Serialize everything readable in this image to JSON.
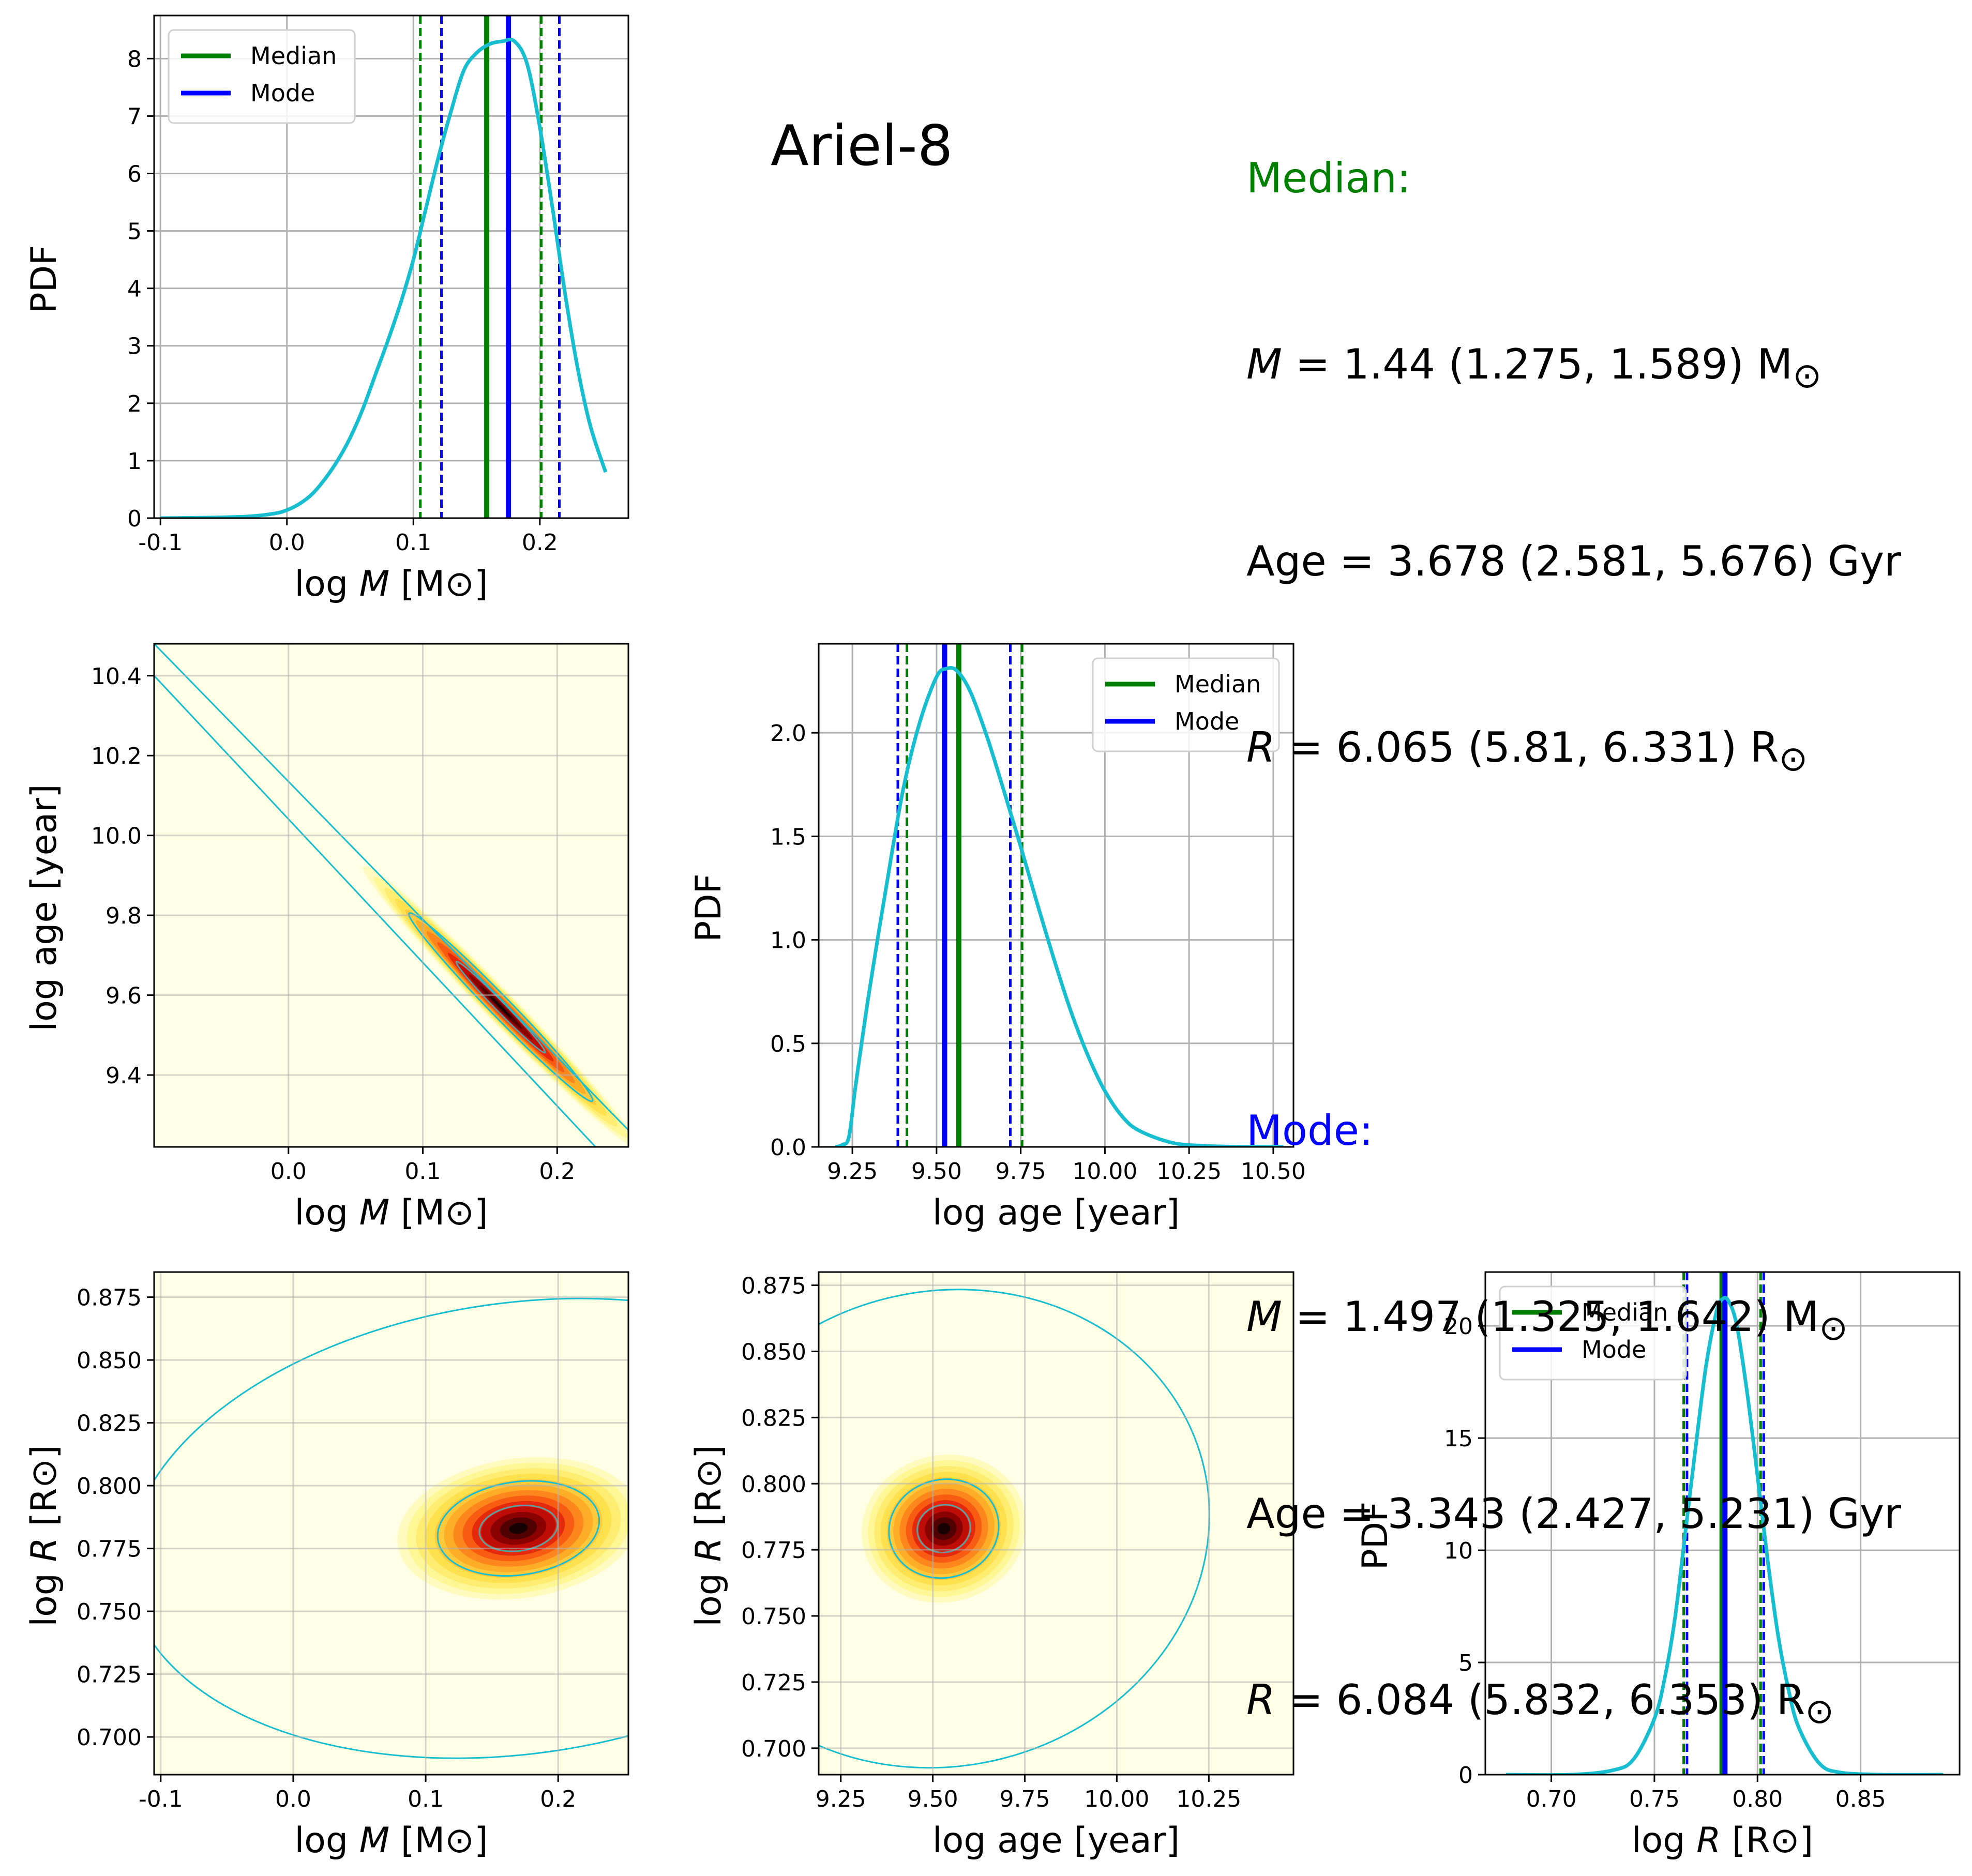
{
  "figure": {
    "title": "Ariel-8",
    "summary": {
      "median": {
        "heading": "Median:",
        "color": "#008000",
        "mass_value": "= 1.44 (1.275, 1.589) M",
        "age_line": "Age = 3.678 (2.581, 5.676) Gyr",
        "radius_value": "= 6.065 (5.81, 6.331) R"
      },
      "mode": {
        "heading": "Mode:",
        "color": "#0000ff",
        "mass_value": "= 1.497 (1.325, 1.642) M",
        "age_line": "Age = 3.343 (2.427, 5.231) Gyr",
        "radius_value": "= 6.084 (5.832, 6.353) R"
      },
      "mass_symbol": "M",
      "radius_symbol": "R",
      "sun_symbol": "⊙"
    },
    "colors": {
      "pdf_curve": "#17becf",
      "median": "#008000",
      "mode": "#0000ff",
      "grid": "#b0b0b0",
      "density_low": "#ffffe5",
      "density_high": "#000000"
    },
    "legend": [
      "Median",
      "Mode"
    ]
  },
  "chart_data": [
    {
      "id": "pdf-logM",
      "type": "line",
      "xlabel": "log M [M⊙]",
      "ylabel": "PDF",
      "xlim": [
        -0.105,
        0.27
      ],
      "ylim": [
        0,
        8.75
      ],
      "xticks": [
        "-0.1",
        "0.0",
        "0.1",
        "0.2"
      ],
      "xtick_values": [
        -0.1,
        0.0,
        0.1,
        0.2
      ],
      "yticks": [
        "0",
        "1",
        "2",
        "3",
        "4",
        "5",
        "6",
        "7",
        "8"
      ],
      "ytick_values": [
        0,
        1,
        2,
        3,
        4,
        5,
        6,
        7,
        8
      ],
      "legend_position": "upper-left",
      "series": [
        {
          "name": "PDF",
          "x": [
            -0.1,
            -0.06,
            -0.03,
            -0.01,
            0.0,
            0.01,
            0.02,
            0.03,
            0.04,
            0.05,
            0.06,
            0.07,
            0.08,
            0.09,
            0.1,
            0.11,
            0.12,
            0.13,
            0.14,
            0.15,
            0.16,
            0.17,
            0.18,
            0.19,
            0.2,
            0.21,
            0.22,
            0.23,
            0.24,
            0.252
          ],
          "y": [
            0.0,
            0.01,
            0.03,
            0.08,
            0.14,
            0.25,
            0.42,
            0.68,
            1.0,
            1.4,
            1.9,
            2.5,
            3.1,
            3.75,
            4.5,
            5.4,
            6.3,
            7.1,
            7.8,
            8.1,
            8.25,
            8.3,
            8.3,
            7.9,
            6.8,
            5.4,
            3.9,
            2.6,
            1.6,
            0.8
          ]
        }
      ],
      "median": 0.158,
      "median_low": 0.1055,
      "median_high": 0.2011,
      "mode": 0.1752,
      "mode_low": 0.1222,
      "mode_high": 0.2154
    },
    {
      "id": "pdf-logage",
      "type": "line",
      "xlabel": "log age [year]",
      "ylabel": "PDF",
      "xlim": [
        9.15,
        10.56
      ],
      "ylim": [
        0,
        2.43
      ],
      "xticks": [
        "9.25",
        "9.50",
        "9.75",
        "10.00",
        "10.25",
        "10.50"
      ],
      "xtick_values": [
        9.25,
        9.5,
        9.75,
        10.0,
        10.25,
        10.5
      ],
      "yticks": [
        "0.0",
        "0.5",
        "1.0",
        "1.5",
        "2.0"
      ],
      "ytick_values": [
        0.0,
        0.5,
        1.0,
        1.5,
        2.0
      ],
      "legend_position": "upper-right",
      "series": [
        {
          "name": "PDF",
          "x": [
            9.2,
            9.22,
            9.24,
            9.26,
            9.3,
            9.35,
            9.4,
            9.45,
            9.5,
            9.53,
            9.56,
            9.6,
            9.65,
            9.7,
            9.75,
            9.8,
            9.85,
            9.9,
            9.95,
            10.0,
            10.05,
            10.1,
            10.2,
            10.3,
            10.4,
            10.53
          ],
          "y": [
            0.0,
            0.01,
            0.05,
            0.3,
            0.75,
            1.25,
            1.72,
            2.05,
            2.27,
            2.31,
            2.3,
            2.2,
            1.98,
            1.72,
            1.45,
            1.17,
            0.9,
            0.65,
            0.44,
            0.27,
            0.15,
            0.08,
            0.02,
            0.005,
            0.001,
            0.0
          ]
        }
      ],
      "median": 9.566,
      "median_low": 9.412,
      "median_high": 9.754,
      "mode": 9.524,
      "mode_low": 9.385,
      "mode_high": 9.719
    },
    {
      "id": "pdf-logR",
      "type": "line",
      "xlabel": "log R [R⊙]",
      "ylabel": "PDF",
      "xlim": [
        0.668,
        0.898
      ],
      "ylim": [
        0,
        22.4
      ],
      "xticks": [
        "0.70",
        "0.75",
        "0.80",
        "0.85"
      ],
      "xtick_values": [
        0.7,
        0.75,
        0.8,
        0.85
      ],
      "yticks": [
        "0",
        "5",
        "10",
        "15",
        "20"
      ],
      "ytick_values": [
        0,
        5,
        10,
        15,
        20
      ],
      "legend_position": "upper-left",
      "series": [
        {
          "name": "PDF",
          "x": [
            0.678,
            0.71,
            0.73,
            0.74,
            0.75,
            0.755,
            0.76,
            0.765,
            0.77,
            0.775,
            0.78,
            0.783,
            0.786,
            0.79,
            0.795,
            0.8,
            0.805,
            0.81,
            0.815,
            0.82,
            0.83,
            0.84,
            0.86,
            0.89
          ],
          "y": [
            0.0,
            0.0,
            0.2,
            0.7,
            2.5,
            4.3,
            7.0,
            10.8,
            14.6,
            18.2,
            20.6,
            21.2,
            21.1,
            20.0,
            17.0,
            13.3,
            9.5,
            6.2,
            3.8,
            2.1,
            0.5,
            0.1,
            0.0,
            0.0
          ]
        }
      ],
      "median": 0.7828,
      "median_low": 0.7642,
      "median_high": 0.8015,
      "mode": 0.7842,
      "mode_low": 0.7658,
      "mode_high": 0.803
    },
    {
      "id": "joint-logM-logage",
      "type": "heatmap",
      "xlabel": "log M [M⊙]",
      "ylabel": "log age [year]",
      "xlim": [
        -0.1,
        0.253
      ],
      "ylim": [
        9.22,
        10.48
      ],
      "xticks": [
        "0.0",
        "0.1",
        "0.2"
      ],
      "xtick_values": [
        0.0,
        0.1,
        0.2
      ],
      "yticks": [
        "9.4",
        "9.6",
        "9.8",
        "10.0",
        "10.2",
        "10.4"
      ],
      "ytick_values": [
        9.4,
        9.6,
        9.8,
        10.0,
        10.2,
        10.4
      ],
      "center": [
        0.158,
        9.57
      ],
      "axis": [
        0.22,
        -1.0
      ],
      "correlation": "strong negative",
      "spread": [
        0.09,
        0.012
      ],
      "outer_band": {
        "x0": -0.1,
        "y0_upper": 10.48,
        "y0_lower": 10.3,
        "slope": -3.45
      }
    },
    {
      "id": "joint-logM-logR",
      "type": "heatmap",
      "xlabel": "log M [M⊙]",
      "ylabel": "log R [R⊙]",
      "xlim": [
        -0.105,
        0.253
      ],
      "ylim": [
        0.685,
        0.885
      ],
      "xticks": [
        "-0.1",
        "0.0",
        "0.1",
        "0.2"
      ],
      "xtick_values": [
        -0.1,
        0.0,
        0.1,
        0.2
      ],
      "yticks": [
        "0.700",
        "0.725",
        "0.750",
        "0.775",
        "0.800",
        "0.825",
        "0.850",
        "0.875"
      ],
      "ytick_values": [
        0.7,
        0.725,
        0.75,
        0.775,
        0.8,
        0.825,
        0.85,
        0.875
      ],
      "center": [
        0.17,
        0.783
      ],
      "spread": [
        0.045,
        0.013
      ]
    },
    {
      "id": "joint-logage-logR",
      "type": "heatmap",
      "xlabel": "log age [year]",
      "ylabel": "log R [R⊙]",
      "xlim": [
        9.19,
        10.48
      ],
      "ylim": [
        0.69,
        0.88
      ],
      "xticks": [
        "9.25",
        "9.50",
        "9.75",
        "10.00",
        "10.25"
      ],
      "xtick_values": [
        9.25,
        9.5,
        9.75,
        10.0,
        10.25
      ],
      "yticks": [
        "0.700",
        "0.725",
        "0.750",
        "0.775",
        "0.800",
        "0.825",
        "0.850",
        "0.875"
      ],
      "ytick_values": [
        0.7,
        0.725,
        0.75,
        0.775,
        0.8,
        0.825,
        0.85,
        0.875
      ],
      "center": [
        9.53,
        0.783
      ],
      "spread": [
        0.11,
        0.013
      ]
    }
  ]
}
